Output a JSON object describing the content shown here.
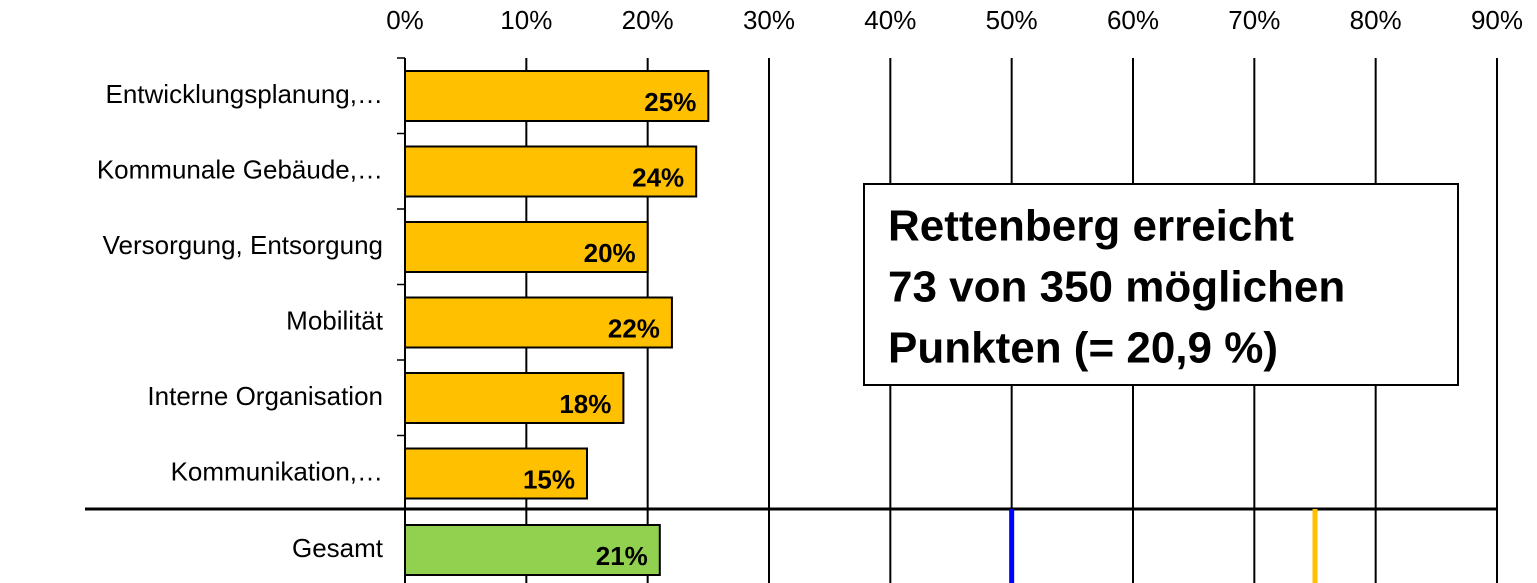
{
  "chart_data": {
    "type": "barh",
    "categories": [
      "Entwicklungsplanung,…",
      "Kommunale Gebäude,…",
      "Versorgung, Entsorgung",
      "Mobilität",
      "Interne Organisation",
      "Kommunikation,…",
      "Gesamt"
    ],
    "values": [
      25,
      24,
      20,
      22,
      18,
      15,
      21
    ],
    "value_labels": [
      "25%",
      "24%",
      "20%",
      "22%",
      "18%",
      "15%",
      "21%"
    ],
    "colors": [
      "#ffc000",
      "#ffc000",
      "#ffc000",
      "#ffc000",
      "#ffc000",
      "#ffc000",
      "#92d050"
    ],
    "xlim": [
      0,
      90
    ],
    "xticks": [
      {
        "value": 0,
        "label": "0%"
      },
      {
        "value": 10,
        "label": "10%"
      },
      {
        "value": 20,
        "label": "20%"
      },
      {
        "value": 30,
        "label": "30%"
      },
      {
        "value": 40,
        "label": "40%"
      },
      {
        "value": 50,
        "label": "50%"
      },
      {
        "value": 60,
        "label": "60%"
      },
      {
        "value": 70,
        "label": "70%"
      },
      {
        "value": 80,
        "label": "80%"
      },
      {
        "value": 90,
        "label": "90%"
      }
    ],
    "grid": true,
    "reference_lines": [
      {
        "value": 50,
        "color": "#0000ff"
      },
      {
        "value": 75,
        "color": "#ffc000"
      }
    ],
    "annotation": [
      "Rettenberg erreicht",
      "73 von 350 möglichen",
      "Punkten (= 20,9 %)"
    ]
  }
}
